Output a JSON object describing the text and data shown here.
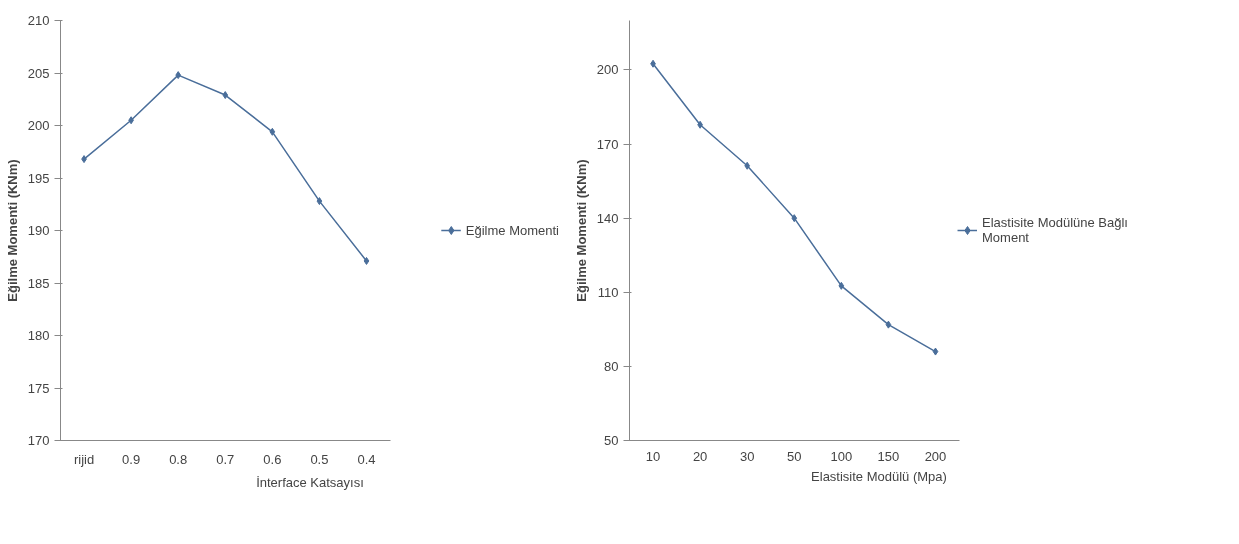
{
  "chart_data": [
    {
      "type": "line",
      "xlabel": "İnterface Katsayısı",
      "ylabel": "Eğilme Momenti (KNm)",
      "categories": [
        "rijid",
        "0.9",
        "0.8",
        "0.7",
        "0.6",
        "0.5",
        "0.4"
      ],
      "series": [
        {
          "name": "Eğilme Momenti",
          "color": "#4a6e9a",
          "values": [
            196.8,
            200.5,
            204.8,
            202.9,
            199.4,
            192.8,
            187.1
          ]
        }
      ],
      "ylim": [
        170,
        210
      ],
      "yticks": [
        170,
        175,
        180,
        185,
        190,
        195,
        200,
        205,
        210
      ],
      "grid": false,
      "legend": "right",
      "marker": "diamond",
      "line_style": "solid"
    },
    {
      "type": "line",
      "xlabel": "Elastisite Modülü (Mpa)",
      "ylabel": "Eğilme Momenti (KNm)",
      "categories": [
        "10",
        "20",
        "30",
        "50",
        "100",
        "150",
        "200"
      ],
      "series": [
        {
          "name": "Elastisite Modülüne Bağlı\nMoment",
          "color": "#4a6e9a",
          "values": [
            202.5,
            177.8,
            161.2,
            140,
            112.6,
            96.9,
            86.0
          ]
        }
      ],
      "ylim": [
        50,
        220
      ],
      "yticks": [
        50,
        80,
        110,
        140,
        170,
        200
      ],
      "grid": false,
      "legend": "right",
      "marker": "diamond",
      "line_style": "solid"
    }
  ]
}
